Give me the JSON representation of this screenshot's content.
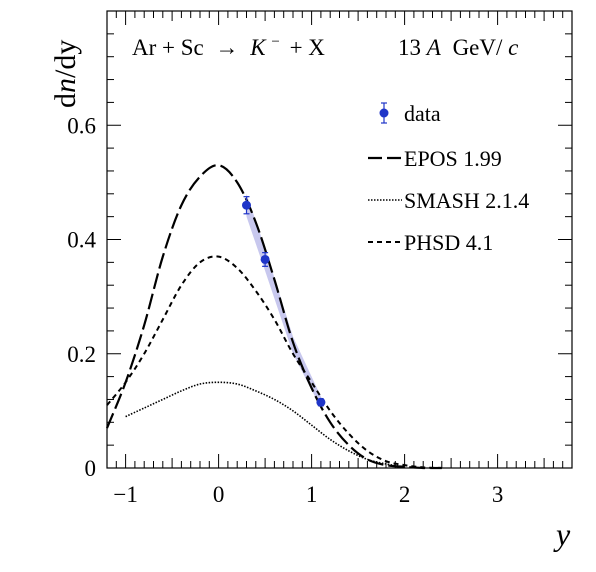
{
  "chart_data": {
    "type": "line",
    "title_left": {
      "reaction_lhs": "Ar + Sc",
      "arrow": "→",
      "particle": "K",
      "particle_sup": "−",
      "reaction_rhs": "+ X"
    },
    "title_right": {
      "energy": "13",
      "energy_unit_a": "A",
      "energy_unit": "GeV/",
      "energy_c": "c"
    },
    "ylabel_d": "d",
    "ylabel_n": "n",
    "ylabel_rest": "/dy",
    "xlabel": "y",
    "xlim": [
      -1.2,
      3.8
    ],
    "ylim": [
      0,
      0.8
    ],
    "xticks": [
      -1,
      0,
      1,
      2,
      3
    ],
    "xtick_labels": [
      "−1",
      "0",
      "1",
      "2",
      "3"
    ],
    "yticks": [
      0,
      0.2,
      0.4,
      0.6
    ],
    "ytick_labels": [
      "0",
      "0.2",
      "0.4",
      "0.6"
    ],
    "grid": false,
    "legend_position": "top-right",
    "legend": [
      {
        "key": "data",
        "label": "data"
      },
      {
        "key": "epos",
        "label": "EPOS 1.99"
      },
      {
        "key": "smash",
        "label": "SMASH 2.1.4"
      },
      {
        "key": "phsd",
        "label": "PHSD 4.1"
      }
    ],
    "data_points": [
      {
        "x": 0.3,
        "y": 0.46,
        "err": 0.015
      },
      {
        "x": 0.5,
        "y": 0.365,
        "err": 0.012
      },
      {
        "x": 1.1,
        "y": 0.115,
        "err": 0.006
      }
    ],
    "data_color": "#1f35c8",
    "systematic_band_color": "#c8c8ee",
    "systematic_band": [
      {
        "x": 0.3,
        "lo": 0.44,
        "hi": 0.48
      },
      {
        "x": 0.5,
        "lo": 0.345,
        "hi": 0.385
      },
      {
        "x": 0.8,
        "lo": 0.2,
        "hi": 0.23
      },
      {
        "x": 1.1,
        "lo": 0.105,
        "hi": 0.125
      }
    ],
    "series": [
      {
        "key": "epos",
        "style": "long-dash",
        "x": [
          -1.2,
          -1.0,
          -0.8,
          -0.6,
          -0.4,
          -0.2,
          0.0,
          0.2,
          0.4,
          0.6,
          0.8,
          1.0,
          1.2,
          1.4,
          1.6,
          1.8,
          2.0,
          2.2,
          2.4
        ],
        "y": [
          0.07,
          0.15,
          0.25,
          0.37,
          0.46,
          0.51,
          0.53,
          0.5,
          0.43,
          0.33,
          0.22,
          0.14,
          0.08,
          0.04,
          0.015,
          0.005,
          0.002,
          0.0,
          0.0
        ]
      },
      {
        "key": "smash",
        "style": "dotted",
        "x": [
          -1.0,
          -0.8,
          -0.6,
          -0.4,
          -0.2,
          0.0,
          0.2,
          0.4,
          0.6,
          0.8,
          1.0,
          1.2,
          1.4,
          1.6,
          1.8,
          2.0
        ],
        "y": [
          0.09,
          0.105,
          0.12,
          0.135,
          0.147,
          0.15,
          0.147,
          0.135,
          0.12,
          0.1,
          0.075,
          0.05,
          0.03,
          0.015,
          0.007,
          0.002
        ]
      },
      {
        "key": "phsd",
        "style": "short-dash",
        "x": [
          -1.2,
          -1.0,
          -0.8,
          -0.6,
          -0.4,
          -0.2,
          0.0,
          0.2,
          0.4,
          0.6,
          0.8,
          1.0,
          1.2,
          1.4,
          1.6,
          1.8,
          2.0,
          2.2,
          2.4
        ],
        "y": [
          0.11,
          0.15,
          0.2,
          0.26,
          0.32,
          0.36,
          0.37,
          0.35,
          0.31,
          0.26,
          0.2,
          0.15,
          0.1,
          0.06,
          0.03,
          0.012,
          0.005,
          0.001,
          0.0
        ]
      }
    ]
  }
}
